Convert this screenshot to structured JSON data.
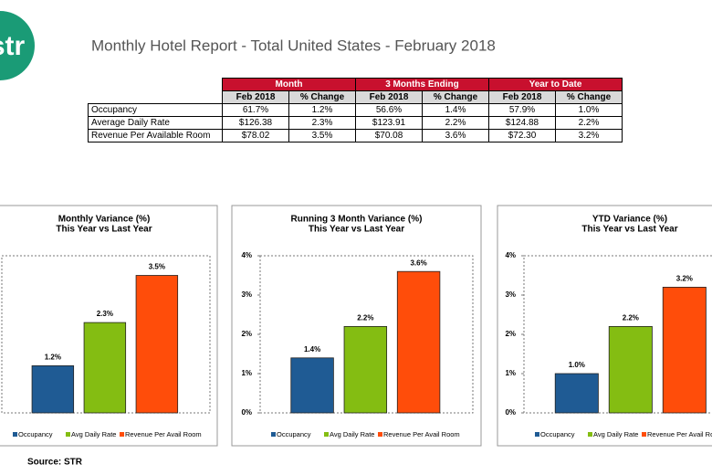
{
  "logo": "str",
  "title": "Monthly Hotel Report - Total United States - February 2018",
  "table": {
    "groups": [
      "Month",
      "3 Months Ending",
      "Year to Date"
    ],
    "subheaders": [
      "Feb 2018",
      "% Change",
      "Feb 2018",
      "% Change",
      "Feb 2018",
      "% Change"
    ],
    "rows": [
      [
        "Occupancy",
        "61.7%",
        "1.2%",
        "56.6%",
        "1.4%",
        "57.9%",
        "1.0%"
      ],
      [
        "Average Daily Rate",
        "$126.38",
        "2.3%",
        "$123.91",
        "2.2%",
        "$124.88",
        "2.2%"
      ],
      [
        "Revenue Per Available Room",
        "$78.02",
        "3.5%",
        "$70.08",
        "3.6%",
        "$72.30",
        "3.2%"
      ]
    ]
  },
  "chart_data": [
    {
      "type": "bar",
      "title": "Monthly Variance (%)",
      "subtitle": "This Year vs Last Year",
      "ylim": [
        0,
        4
      ],
      "series": [
        {
          "name": "Occupancy",
          "color": "#1f5b94",
          "values": [
            1.2
          ],
          "value_labels": [
            "1.2%"
          ]
        },
        {
          "name": "Avg Daily Rate",
          "color": "#84bd12",
          "values": [
            2.3
          ],
          "value_labels": [
            "2.3%"
          ]
        },
        {
          "name": "Revenue Per Avail Room",
          "color": "#ff4d0a",
          "values": [
            3.5
          ],
          "value_labels": [
            "3.5%"
          ]
        }
      ]
    },
    {
      "type": "bar",
      "title": "Running 3 Month Variance (%)",
      "subtitle": "This Year vs Last Year",
      "ylim": [
        0,
        4
      ],
      "yticks": [
        {
          "value": 0,
          "label": "0%"
        },
        {
          "value": 1,
          "label": "1%"
        },
        {
          "value": 2,
          "label": "2%"
        },
        {
          "value": 3,
          "label": "3%"
        },
        {
          "value": 4,
          "label": "4%"
        }
      ],
      "series": [
        {
          "name": "Occupancy",
          "color": "#1f5b94",
          "values": [
            1.4
          ],
          "value_labels": [
            "1.4%"
          ]
        },
        {
          "name": "Avg Daily Rate",
          "color": "#84bd12",
          "values": [
            2.2
          ],
          "value_labels": [
            "2.2%"
          ]
        },
        {
          "name": "Revenue Per Avail Room",
          "color": "#ff4d0a",
          "values": [
            3.6
          ],
          "value_labels": [
            "3.6%"
          ]
        }
      ]
    },
    {
      "type": "bar",
      "title": "YTD Variance (%)",
      "subtitle": "This Year vs Last Year",
      "ylim": [
        0,
        4
      ],
      "yticks": [
        {
          "value": 0,
          "label": "0%"
        },
        {
          "value": 1,
          "label": "1%"
        },
        {
          "value": 2,
          "label": "2%"
        },
        {
          "value": 3,
          "label": "3%"
        },
        {
          "value": 4,
          "label": "4%"
        }
      ],
      "series": [
        {
          "name": "Occupancy",
          "color": "#1f5b94",
          "values": [
            1.0
          ],
          "value_labels": [
            "1.0%"
          ]
        },
        {
          "name": "Avg Daily Rate",
          "color": "#84bd12",
          "values": [
            2.2
          ],
          "value_labels": [
            "2.2%"
          ]
        },
        {
          "name": "Revenue Per Avail Room",
          "color": "#ff4d0a",
          "values": [
            3.2
          ],
          "value_labels": [
            "3.2%"
          ]
        }
      ]
    }
  ],
  "source": "Source: STR"
}
